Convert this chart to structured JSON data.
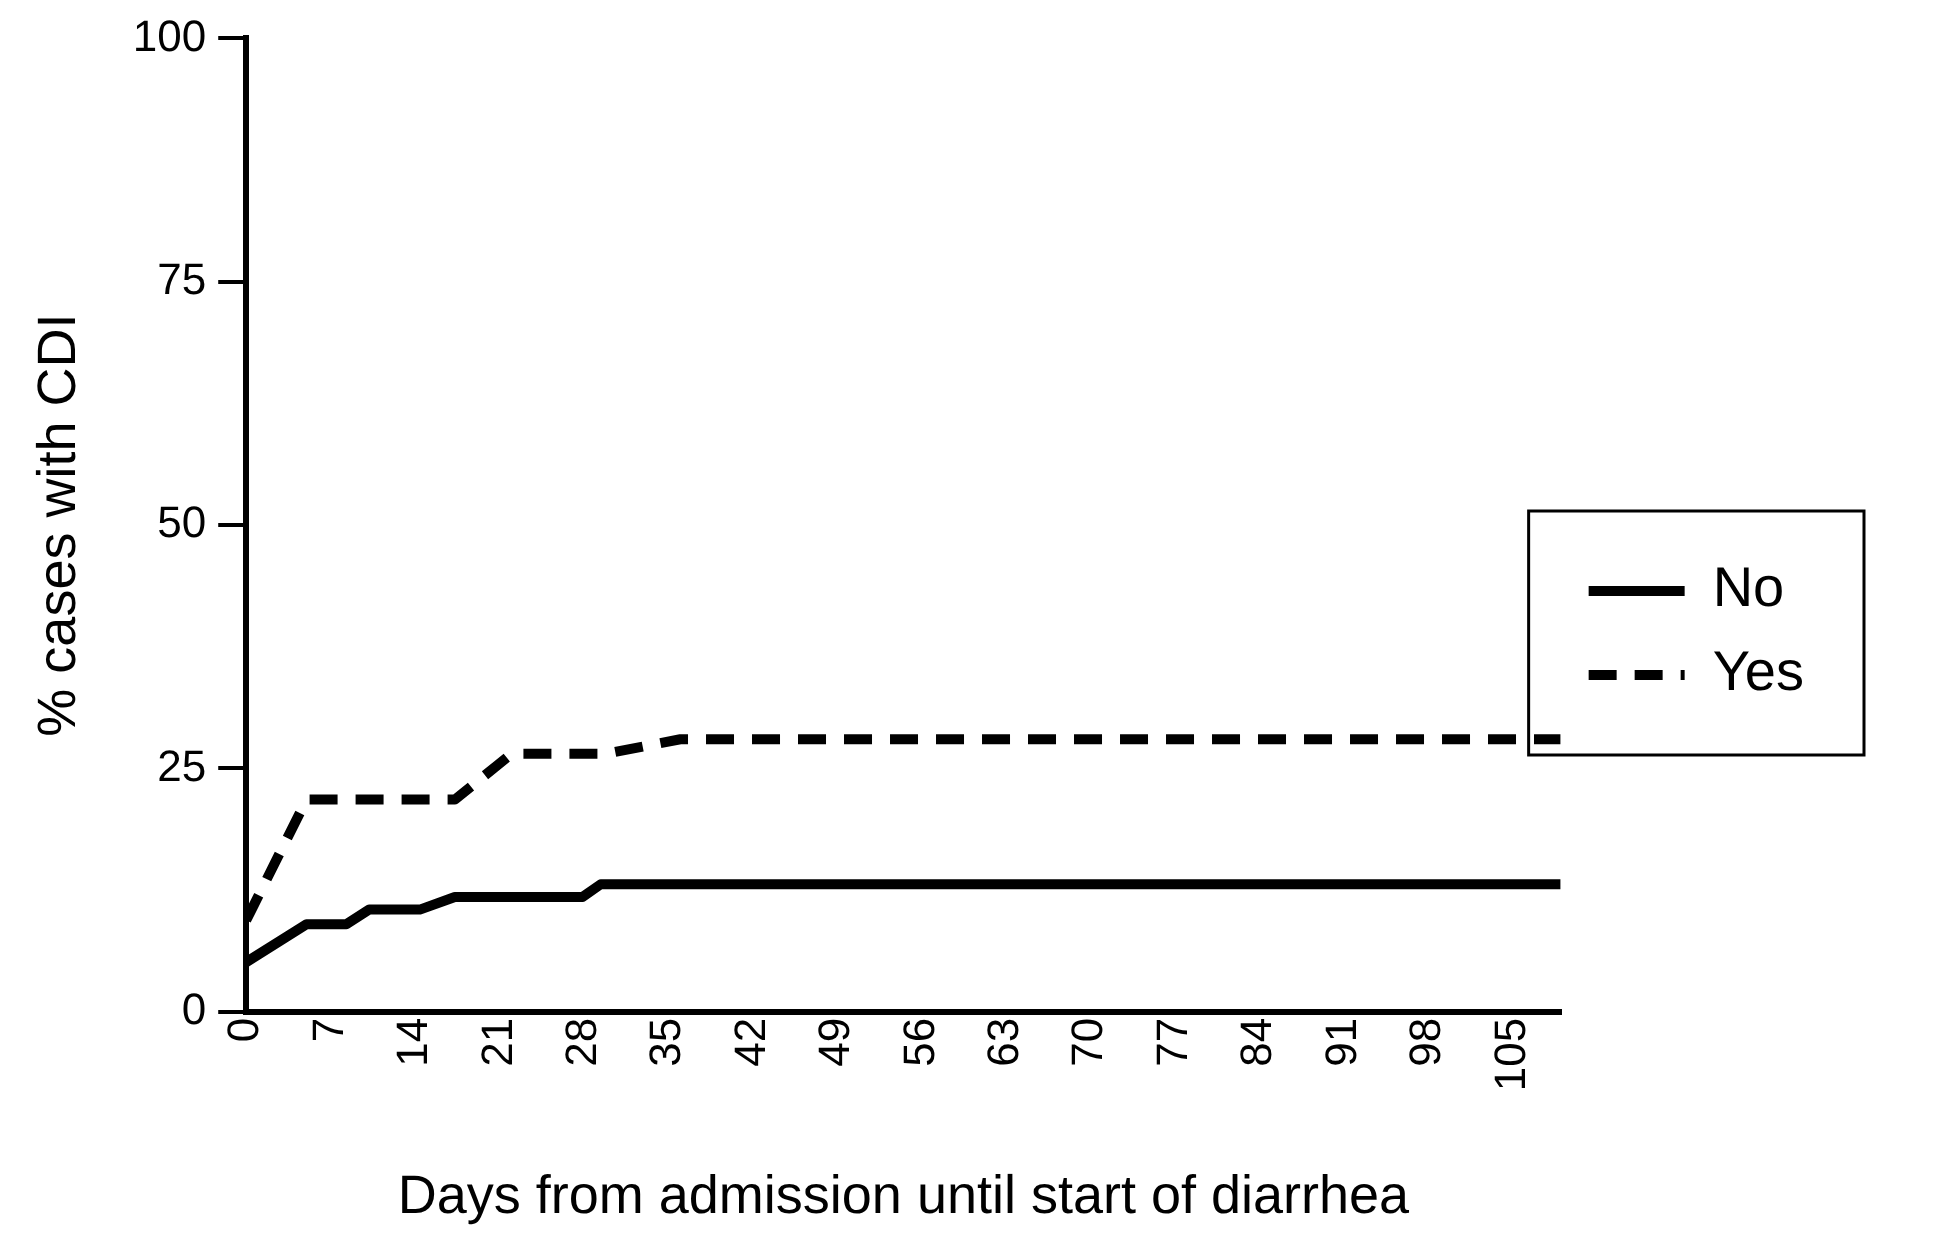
{
  "chart_data": {
    "type": "line",
    "xlabel": "Days from admission until start of diarrhea",
    "ylabel": "% cases with CDI",
    "xlim": [
      0,
      109
    ],
    "xticks": [
      0,
      7,
      14,
      21,
      28,
      35,
      42,
      49,
      56,
      63,
      70,
      77,
      84,
      91,
      98,
      105
    ],
    "ylim": [
      0,
      100
    ],
    "yticks": [
      0,
      25,
      50,
      75,
      100
    ],
    "grid": false,
    "legend": "right",
    "marker": "none",
    "series": [
      {
        "name": "No",
        "color": "#000000",
        "line_style": "solid",
        "x": [
          0,
          5,
          8.3,
          10.2,
          14.4,
          17.3,
          27.9,
          29.4,
          109
        ],
        "values": [
          5.1,
          9,
          9,
          10.5,
          10.5,
          11.8,
          11.8,
          13.1,
          13.1
        ]
      },
      {
        "name": "Yes",
        "color": "#000000",
        "line_style": "dashed",
        "x": [
          0,
          5,
          17.3,
          22,
          29.8,
          36,
          109
        ],
        "values": [
          9.4,
          21.8,
          21.8,
          26.5,
          26.5,
          28,
          28
        ]
      }
    ]
  }
}
